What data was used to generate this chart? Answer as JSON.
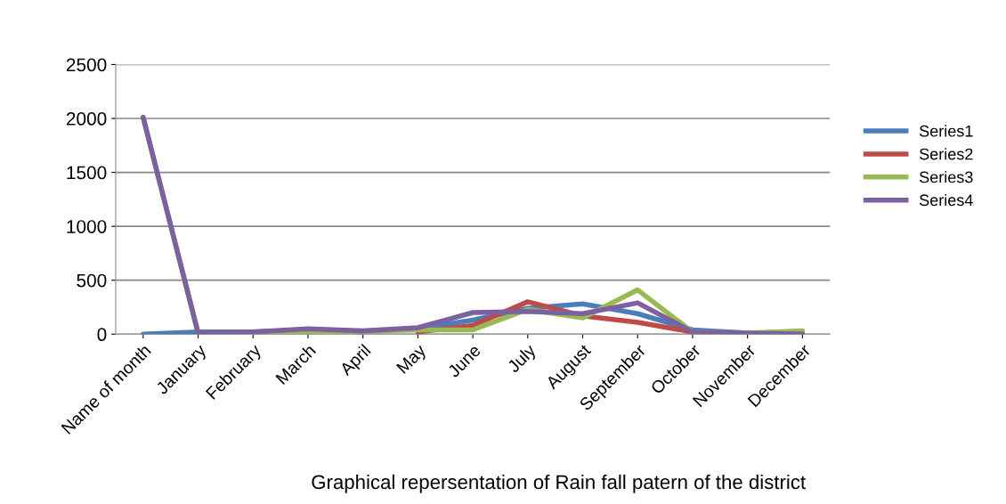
{
  "chart_data": {
    "type": "line",
    "xlabel": "Graphical repersentation of Rain fall patern of the district",
    "categories": [
      "Name of month",
      "January",
      "February",
      "March",
      "April",
      "May",
      "June",
      "July",
      "August",
      "September",
      "October",
      "November",
      "December"
    ],
    "series": [
      {
        "name": "Series1",
        "color": "#4a7ebb",
        "values": [
          0,
          20,
          20,
          40,
          20,
          50,
          130,
          240,
          280,
          190,
          40,
          10,
          0
        ]
      },
      {
        "name": "Series2",
        "color": "#be4b48",
        "values": [
          null,
          null,
          null,
          null,
          null,
          20,
          80,
          300,
          170,
          110,
          20,
          null,
          null
        ]
      },
      {
        "name": "Series3",
        "color": "#98b954",
        "values": [
          2010,
          10,
          10,
          20,
          20,
          40,
          40,
          230,
          150,
          410,
          20,
          10,
          30
        ]
      },
      {
        "name": "Series4",
        "color": "#7d60a0",
        "values": [
          2010,
          10,
          20,
          50,
          30,
          60,
          200,
          210,
          190,
          290,
          20,
          10,
          0
        ]
      }
    ],
    "ylim": [
      0,
      2500
    ],
    "yticks": [
      0,
      500,
      1000,
      1500,
      2000,
      2500
    ],
    "grid": "y",
    "legend": "right",
    "marker": "none",
    "line_style": "solid"
  }
}
